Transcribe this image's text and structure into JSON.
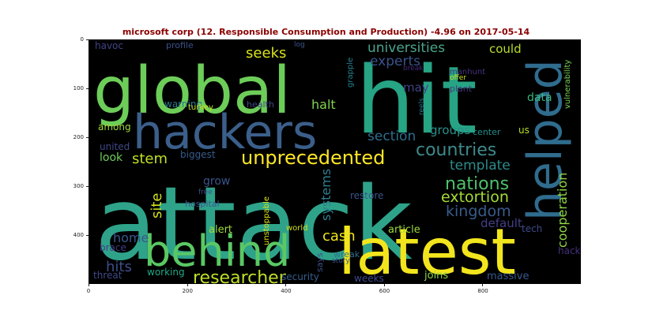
{
  "title": "microsoft corp (12. Responsible Consumption and Production) -4.96 on 2017-05-14",
  "axes": {
    "x_ticks": [
      "0",
      "200",
      "400",
      "600",
      "800"
    ],
    "y_ticks": [
      "0",
      "100",
      "200",
      "300",
      "400"
    ]
  },
  "colors": {
    "title": "#8b0000",
    "background": "#000000"
  },
  "words": [
    {
      "text": "attack",
      "color": "#2ea38a"
    },
    {
      "text": "hit",
      "color": "#26a484"
    },
    {
      "text": "global",
      "color": "#6dcd59"
    },
    {
      "text": "latest",
      "color": "#f2e51d"
    },
    {
      "text": "hackers",
      "color": "#3b5f8a"
    },
    {
      "text": "helped",
      "color": "#2f6c8e"
    },
    {
      "text": "behind",
      "color": "#5ac864"
    },
    {
      "text": "unprecedented",
      "color": "#fde725"
    },
    {
      "text": "countries",
      "color": "#3e8a8c"
    },
    {
      "text": "researcher",
      "color": "#bfdf26"
    },
    {
      "text": "nations",
      "color": "#4fc16b"
    },
    {
      "text": "kingdom",
      "color": "#3b5c8b"
    },
    {
      "text": "extortion",
      "color": "#a5db36"
    },
    {
      "text": "universities",
      "color": "#4aa68b"
    },
    {
      "text": "experts",
      "color": "#3a538b"
    },
    {
      "text": "section",
      "color": "#2e6e8e"
    },
    {
      "text": "template",
      "color": "#2c8c8a"
    },
    {
      "text": "cooperation",
      "color": "#8fd744"
    },
    {
      "text": "seeks",
      "color": "#d8e219"
    },
    {
      "text": "cash",
      "color": "#f0e51c"
    },
    {
      "text": "stem",
      "color": "#c2df23"
    },
    {
      "text": "site",
      "color": "#d0e11c"
    },
    {
      "text": "systems",
      "color": "#2e7f8e"
    },
    {
      "text": "hits",
      "color": "#3d4e8a"
    },
    {
      "text": "home",
      "color": "#3a568c"
    },
    {
      "text": "groups",
      "color": "#2a9289"
    },
    {
      "text": "default",
      "color": "#433e85"
    },
    {
      "text": "halt",
      "color": "#7fd34e"
    },
    {
      "text": "may",
      "color": "#404387"
    },
    {
      "text": "could",
      "color": "#b8de29"
    },
    {
      "text": "data",
      "color": "#35b779"
    },
    {
      "text": "grow",
      "color": "#3a548c"
    },
    {
      "text": "biggest",
      "color": "#365c8d"
    },
    {
      "text": "look",
      "color": "#6ece58"
    },
    {
      "text": "united",
      "color": "#3f4788"
    },
    {
      "text": "among",
      "color": "#a0da39"
    },
    {
      "text": "warning",
      "color": "#2a788e"
    },
    {
      "text": "health",
      "color": "#404688"
    },
    {
      "text": "turkey",
      "color": "#c8e020"
    },
    {
      "text": "profile",
      "color": "#3b528b"
    },
    {
      "text": "havoc",
      "color": "#414487"
    },
    {
      "text": "plant",
      "color": "#453882"
    },
    {
      "text": "manhunt",
      "color": "#46327e"
    },
    {
      "text": "break",
      "color": "#472c7a"
    },
    {
      "text": "offer",
      "color": "#cae11f"
    },
    {
      "text": "log",
      "color": "#3a548c"
    },
    {
      "text": "grapple",
      "color": "#25838e"
    },
    {
      "text": "reels",
      "color": "#2b748e"
    },
    {
      "text": "center",
      "color": "#21908d"
    },
    {
      "text": "us",
      "color": "#b5de2b"
    },
    {
      "text": "vulnerability",
      "color": "#7ad151"
    },
    {
      "text": "tech",
      "color": "#3e4a89"
    },
    {
      "text": "hack",
      "color": "#46307e"
    },
    {
      "text": "massive",
      "color": "#38598c"
    },
    {
      "text": "joins",
      "color": "#89d548"
    },
    {
      "text": "weeks",
      "color": "#3e4c8a"
    },
    {
      "text": "article",
      "color": "#9dd93b"
    },
    {
      "text": "wreak",
      "color": "#2d708e"
    },
    {
      "text": "says",
      "color": "#3b528b"
    },
    {
      "text": "story",
      "color": "#3a548c"
    },
    {
      "text": "security",
      "color": "#365d8d"
    },
    {
      "text": "working",
      "color": "#22a884"
    },
    {
      "text": "threat",
      "color": "#3f4889"
    },
    {
      "text": "brace",
      "color": "#443a83"
    },
    {
      "text": "alert",
      "color": "#a2da37"
    },
    {
      "text": "world",
      "color": "#d2e21b"
    },
    {
      "text": "unstoppable",
      "color": "#dde318"
    },
    {
      "text": "hospital",
      "color": "#38588c"
    },
    {
      "text": "free",
      "color": "#3c4f8a"
    },
    {
      "text": "restore",
      "color": "#3b528b"
    }
  ]
}
